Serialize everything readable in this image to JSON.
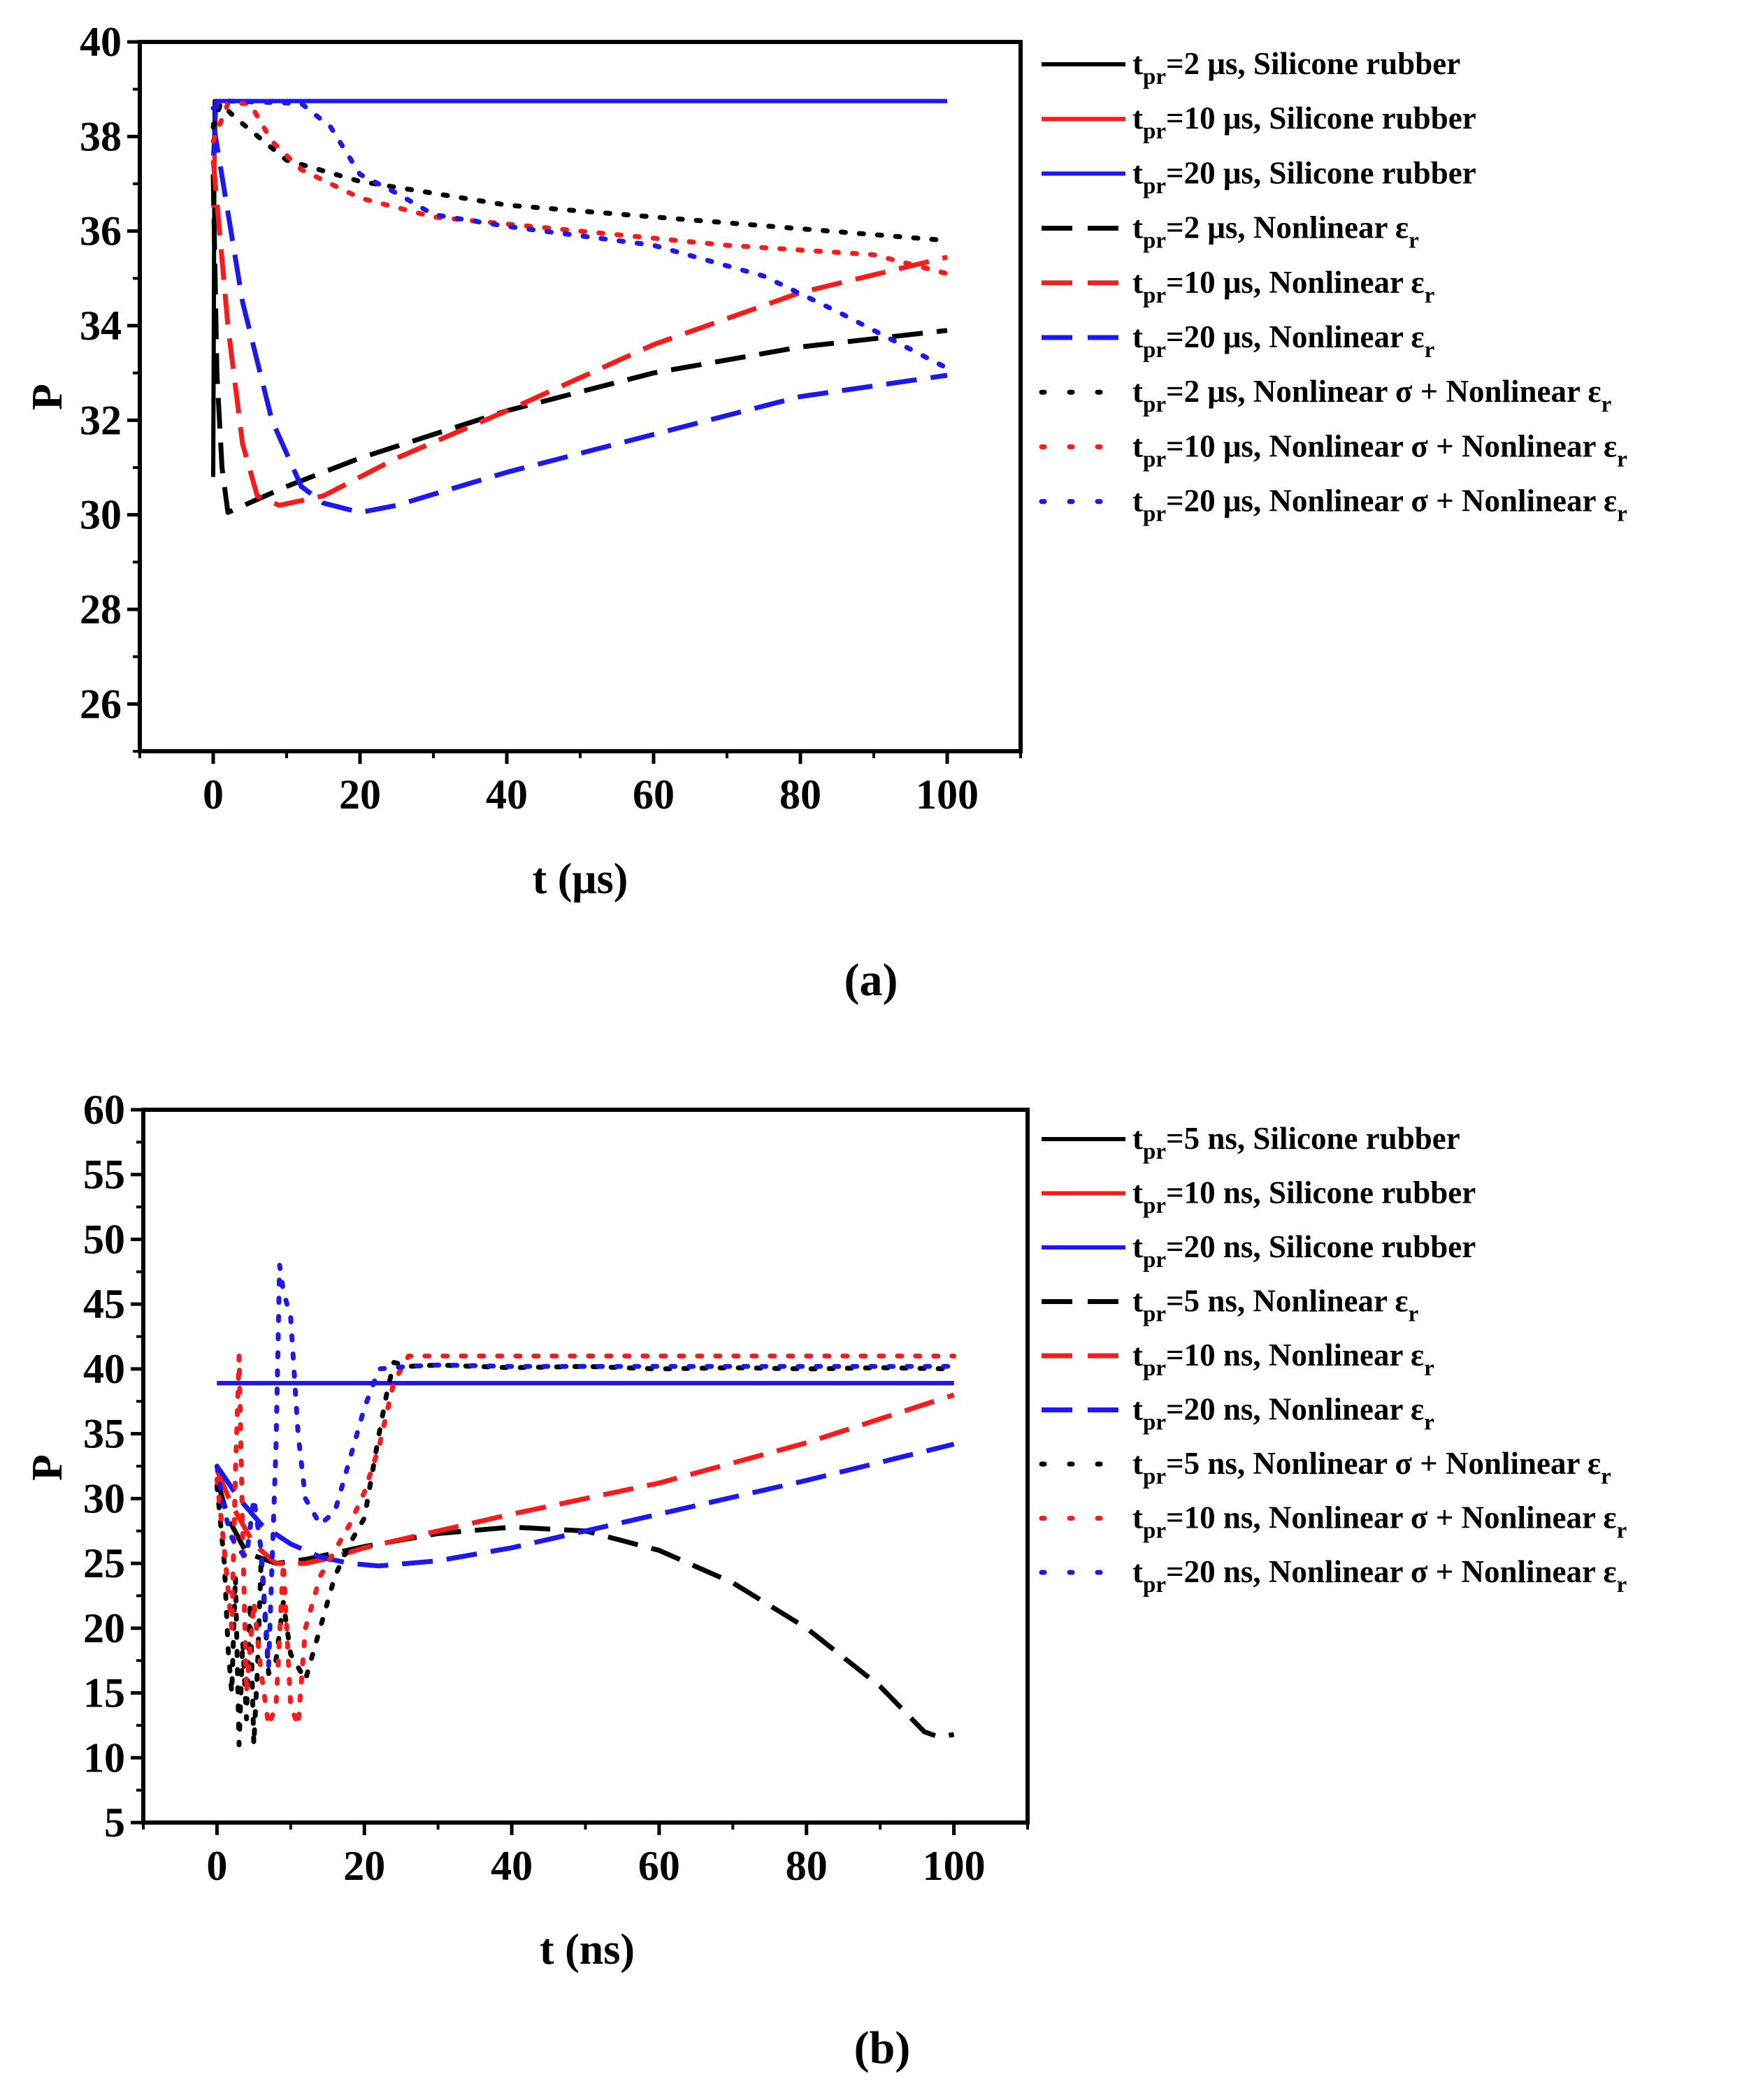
{
  "colors": {
    "black": "#000000",
    "red": "#ff1a1a",
    "blue": "#1a1aee"
  },
  "chart_data": [
    {
      "panel_label": "(a)",
      "type": "line",
      "xlabel": "t (μs)",
      "ylabel": "P",
      "xlim": [
        -10,
        110
      ],
      "ylim": [
        25,
        40
      ],
      "xticks": [
        0,
        20,
        40,
        60,
        80,
        100
      ],
      "yticks": [
        26,
        28,
        30,
        32,
        34,
        36,
        38,
        40
      ],
      "grid": false,
      "legend_position": "right",
      "series": [
        {
          "name": "tpr=2 μs, Silicone rubber",
          "sub_text": "pr",
          "prefix": "t",
          "main_text": "=2 μs, Silicone rubber",
          "tail_sub": "",
          "color": "black",
          "style": "solid",
          "points": [
            [
              0,
              30.8
            ],
            [
              0.2,
              38.75
            ],
            [
              100,
              38.75
            ]
          ]
        },
        {
          "name": "tpr=10 μs, Silicone rubber",
          "sub_text": "pr",
          "prefix": "t",
          "main_text": "=10 μs, Silicone rubber",
          "tail_sub": "",
          "color": "red",
          "style": "solid",
          "points": [
            [
              0,
              36.5
            ],
            [
              0.4,
              38.75
            ],
            [
              100,
              38.75
            ]
          ]
        },
        {
          "name": "tpr=20 μs, Silicone rubber",
          "sub_text": "pr",
          "prefix": "t",
          "main_text": "=20 μs, Silicone rubber",
          "tail_sub": "",
          "color": "blue",
          "style": "solid",
          "points": [
            [
              0,
              37.6
            ],
            [
              0.4,
              38.75
            ],
            [
              100,
              38.75
            ]
          ]
        },
        {
          "name": "tpr=2 μs, Nonlinear εr",
          "sub_text": "pr",
          "prefix": "t",
          "main_text": "=2 μs, Nonlinear ε",
          "tail_sub": "r",
          "color": "black",
          "style": "dash",
          "points": [
            [
              0,
              37.2
            ],
            [
              0.5,
              33
            ],
            [
              1.2,
              31
            ],
            [
              2,
              30.05
            ],
            [
              10,
              30.6
            ],
            [
              20,
              31.2
            ],
            [
              40,
              32.2
            ],
            [
              60,
              33
            ],
            [
              80,
              33.55
            ],
            [
              100,
              33.9
            ]
          ]
        },
        {
          "name": "tpr=10 μs, Nonlinear εr",
          "sub_text": "pr",
          "prefix": "t",
          "main_text": "=10 μs, Nonlinear ε",
          "tail_sub": "r",
          "color": "red",
          "style": "dash",
          "points": [
            [
              0,
              37.5
            ],
            [
              2,
              34
            ],
            [
              4,
              31.5
            ],
            [
              6,
              30.4
            ],
            [
              9,
              30.2
            ],
            [
              15,
              30.4
            ],
            [
              25,
              31.2
            ],
            [
              40,
              32.2
            ],
            [
              60,
              33.6
            ],
            [
              80,
              34.7
            ],
            [
              100,
              35.45
            ]
          ]
        },
        {
          "name": "tpr=20 μs, Nonlinear εr",
          "sub_text": "pr",
          "prefix": "t",
          "main_text": "=20 μs, Nonlinear ε",
          "tail_sub": "r",
          "color": "blue",
          "style": "dash",
          "points": [
            [
              0,
              38.3
            ],
            [
              4,
              34.5
            ],
            [
              8,
              32
            ],
            [
              12,
              30.6
            ],
            [
              15,
              30.25
            ],
            [
              20,
              30.05
            ],
            [
              25,
              30.2
            ],
            [
              40,
              30.9
            ],
            [
              60,
              31.7
            ],
            [
              80,
              32.5
            ],
            [
              100,
              32.95
            ]
          ]
        },
        {
          "name": "tpr=2 μs, Nonlinear σ + Nonlinear εr",
          "sub_text": "pr",
          "prefix": "t",
          "main_text": "=2 μs, Nonlinear σ + Nonlinear ε",
          "tail_sub": "r",
          "color": "black",
          "style": "dot",
          "points": [
            [
              0,
              38.2
            ],
            [
              1,
              38.7
            ],
            [
              3,
              38.4
            ],
            [
              10,
              37.5
            ],
            [
              20,
              37.05
            ],
            [
              40,
              36.55
            ],
            [
              60,
              36.3
            ],
            [
              80,
              36.05
            ],
            [
              100,
              35.8
            ]
          ]
        },
        {
          "name": "tpr=10 μs, Nonlinear σ + Nonlinear εr",
          "sub_text": "pr",
          "prefix": "t",
          "main_text": "=10 μs, Nonlinear σ + Nonlinear ε",
          "tail_sub": "r",
          "color": "red",
          "style": "dot",
          "points": [
            [
              0,
              37.9
            ],
            [
              2,
              38.7
            ],
            [
              5,
              38.7
            ],
            [
              8,
              37.9
            ],
            [
              12,
              37.3
            ],
            [
              20,
              36.7
            ],
            [
              30,
              36.3
            ],
            [
              50,
              36.0
            ],
            [
              70,
              35.7
            ],
            [
              90,
              35.5
            ],
            [
              100,
              35.1
            ]
          ]
        },
        {
          "name": "tpr=20 μs, Nonlinear σ + Nonlinear εr",
          "sub_text": "pr",
          "prefix": "t",
          "main_text": "=20 μs, Nonlinear σ + Nonlinear ε",
          "tail_sub": "r",
          "color": "blue",
          "style": "dot",
          "points": [
            [
              0,
              38.6
            ],
            [
              2,
              38.75
            ],
            [
              12,
              38.7
            ],
            [
              16,
              38.2
            ],
            [
              20,
              37.2
            ],
            [
              25,
              36.8
            ],
            [
              30,
              36.35
            ],
            [
              40,
              36.1
            ],
            [
              60,
              35.7
            ],
            [
              75,
              35.05
            ],
            [
              85,
              34.3
            ],
            [
              95,
              33.5
            ],
            [
              100,
              33.1
            ]
          ]
        }
      ]
    },
    {
      "panel_label": "(b)",
      "type": "line",
      "xlabel": "t (ns)",
      "ylabel": "P",
      "xlim": [
        -10,
        110
      ],
      "ylim": [
        5,
        60
      ],
      "xticks": [
        0,
        20,
        40,
        60,
        80,
        100
      ],
      "yticks": [
        5,
        10,
        15,
        20,
        25,
        30,
        35,
        40,
        45,
        50,
        55,
        60
      ],
      "grid": false,
      "legend_position": "right",
      "series": [
        {
          "name": "tpr=5 ns, Silicone rubber",
          "sub_text": "pr",
          "prefix": "t",
          "main_text": "=5 ns, Silicone rubber",
          "tail_sub": "",
          "color": "black",
          "style": "solid",
          "points": [
            [
              0,
              38.9
            ],
            [
              100,
              38.9
            ]
          ]
        },
        {
          "name": "tpr=10 ns, Silicone rubber",
          "sub_text": "pr",
          "prefix": "t",
          "main_text": "=10 ns, Silicone rubber",
          "tail_sub": "",
          "color": "red",
          "style": "solid",
          "points": [
            [
              0,
              38.9
            ],
            [
              100,
              38.9
            ]
          ]
        },
        {
          "name": "tpr=20 ns, Silicone rubber",
          "sub_text": "pr",
          "prefix": "t",
          "main_text": "=20 ns, Silicone rubber",
          "tail_sub": "",
          "color": "blue",
          "style": "solid",
          "points": [
            [
              0,
              38.9
            ],
            [
              100,
              38.9
            ]
          ]
        },
        {
          "name": "tpr=5 ns, Nonlinear εr",
          "sub_text": "pr",
          "prefix": "t",
          "main_text": "=5 ns, Nonlinear ε",
          "tail_sub": "r",
          "color": "black",
          "style": "dash",
          "points": [
            [
              0,
              31.5
            ],
            [
              1.5,
              28.5
            ],
            [
              4,
              25.8
            ],
            [
              8,
              25.0
            ],
            [
              12,
              25.3
            ],
            [
              20,
              26.3
            ],
            [
              30,
              27.3
            ],
            [
              40,
              27.8
            ],
            [
              50,
              27.5
            ],
            [
              60,
              26.0
            ],
            [
              70,
              23.5
            ],
            [
              80,
              20.0
            ],
            [
              90,
              15.5
            ],
            [
              96,
              12.0
            ],
            [
              98,
              11.6
            ],
            [
              100,
              11.8
            ]
          ]
        },
        {
          "name": "tpr=10 ns, Nonlinear εr",
          "sub_text": "pr",
          "prefix": "t",
          "main_text": "=10 ns, Nonlinear ε",
          "tail_sub": "r",
          "color": "red",
          "style": "dash",
          "points": [
            [
              0,
              32.2
            ],
            [
              2,
              29.5
            ],
            [
              5,
              26.5
            ],
            [
              8,
              25.0
            ],
            [
              12,
              25.0
            ],
            [
              16,
              25.5
            ],
            [
              20,
              26.2
            ],
            [
              30,
              27.5
            ],
            [
              40,
              28.8
            ],
            [
              60,
              31.2
            ],
            [
              80,
              34.3
            ],
            [
              100,
              38.0
            ]
          ]
        },
        {
          "name": "tpr=20 ns, Nonlinear εr",
          "sub_text": "pr",
          "prefix": "t",
          "main_text": "=20 ns, Nonlinear ε",
          "tail_sub": "r",
          "color": "blue",
          "style": "dash",
          "points": [
            [
              0,
              32.5
            ],
            [
              3,
              30
            ],
            [
              6,
              28
            ],
            [
              10,
              26.5
            ],
            [
              14,
              25.5
            ],
            [
              18,
              25.0
            ],
            [
              22,
              24.8
            ],
            [
              30,
              25.2
            ],
            [
              40,
              26.2
            ],
            [
              60,
              28.8
            ],
            [
              80,
              31.4
            ],
            [
              100,
              34.2
            ]
          ]
        },
        {
          "name": "tpr=5 ns, Nonlinear σ + Nonlinear εr",
          "sub_text": "pr",
          "prefix": "t",
          "main_text": "=5 ns, Nonlinear σ + Nonlinear ε",
          "tail_sub": "r",
          "color": "black",
          "style": "dot",
          "points": [
            [
              0,
              31
            ],
            [
              1,
              25
            ],
            [
              1.5,
              18.5
            ],
            [
              2,
              15
            ],
            [
              2.5,
              24
            ],
            [
              3,
              11
            ],
            [
              3.5,
              19
            ],
            [
              4,
              13
            ],
            [
              4.5,
              22
            ],
            [
              5,
              11
            ],
            [
              5.5,
              17
            ],
            [
              6,
              25.5
            ],
            [
              7,
              16.5
            ],
            [
              8,
              17.5
            ],
            [
              9,
              22
            ],
            [
              10,
              18
            ],
            [
              12,
              16
            ],
            [
              14,
              20
            ],
            [
              16,
              24
            ],
            [
              18,
              26.5
            ],
            [
              20,
              28.5
            ],
            [
              22,
              35
            ],
            [
              23,
              38
            ],
            [
              24,
              40.5
            ],
            [
              26,
              40.2
            ],
            [
              30,
              40.3
            ],
            [
              40,
              40.1
            ],
            [
              50,
              40.2
            ],
            [
              60,
              40.0
            ],
            [
              70,
              40.1
            ],
            [
              80,
              40.0
            ],
            [
              90,
              40.1
            ],
            [
              100,
              40.0
            ]
          ]
        },
        {
          "name": "tpr=10 ns, Nonlinear σ + Nonlinear εr",
          "sub_text": "pr",
          "prefix": "t",
          "main_text": "=10 ns, Nonlinear σ + Nonlinear ε",
          "tail_sub": "r",
          "color": "red",
          "style": "dot",
          "points": [
            [
              0,
              31.5
            ],
            [
              1,
              26
            ],
            [
              2,
              20
            ],
            [
              2.5,
              32
            ],
            [
              3,
              41
            ],
            [
              3.5,
              27
            ],
            [
              4,
              15
            ],
            [
              5,
              22
            ],
            [
              6,
              16.5
            ],
            [
              7,
              12.5
            ],
            [
              8,
              14
            ],
            [
              9,
              25
            ],
            [
              10,
              14
            ],
            [
              11,
              12.5
            ],
            [
              12,
              20
            ],
            [
              14,
              24
            ],
            [
              16,
              26
            ],
            [
              18,
              28
            ],
            [
              20,
              30.5
            ],
            [
              22,
              34
            ],
            [
              24,
              39
            ],
            [
              26,
              41
            ],
            [
              30,
              41
            ],
            [
              40,
              41
            ],
            [
              60,
              41
            ],
            [
              80,
              41
            ],
            [
              100,
              41
            ]
          ]
        },
        {
          "name": "tpr=20 ns, Nonlinear σ + Nonlinear εr",
          "sub_text": "pr",
          "prefix": "t",
          "main_text": "=20 ns, Nonlinear σ + Nonlinear ε",
          "tail_sub": "r",
          "color": "blue",
          "style": "dot",
          "points": [
            [
              0,
              32.5
            ],
            [
              1,
              29
            ],
            [
              2,
              27
            ],
            [
              3,
              26
            ],
            [
              4,
              25.5
            ],
            [
              5,
              30
            ],
            [
              6,
              26
            ],
            [
              7,
              17
            ],
            [
              8,
              34
            ],
            [
              8.5,
              48
            ],
            [
              9,
              46
            ],
            [
              10,
              44
            ],
            [
              11,
              35
            ],
            [
              12,
              30
            ],
            [
              14,
              28
            ],
            [
              16,
              29
            ],
            [
              18,
              33
            ],
            [
              20,
              37
            ],
            [
              22,
              40
            ],
            [
              26,
              40.2
            ],
            [
              30,
              40.3
            ],
            [
              40,
              40.2
            ],
            [
              60,
              40.2
            ],
            [
              80,
              40.2
            ],
            [
              100,
              40.2
            ]
          ]
        }
      ]
    }
  ]
}
